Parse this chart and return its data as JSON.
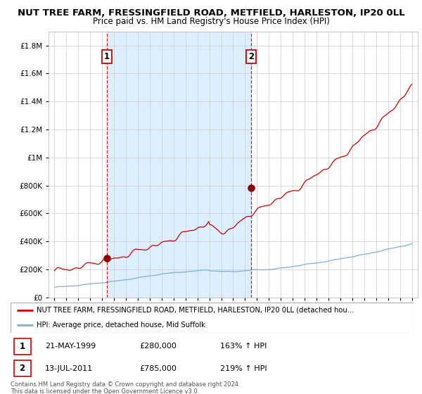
{
  "title": "NUT TREE FARM, FRESSINGFIELD ROAD, METFIELD, HARLESTON, IP20 0LL",
  "subtitle": "Price paid vs. HM Land Registry's House Price Index (HPI)",
  "ylim": [
    0,
    1900000
  ],
  "xlim": [
    1994.5,
    2025.5
  ],
  "yticks": [
    0,
    200000,
    400000,
    600000,
    800000,
    1000000,
    1200000,
    1400000,
    1600000,
    1800000
  ],
  "sale1_x": 1999.38,
  "sale1_y": 280000,
  "sale2_x": 2011.53,
  "sale2_y": 785000,
  "red_line_color": "#cc0000",
  "blue_line_color": "#7bafd4",
  "shade_color": "#ddeeff",
  "marker_color": "#cc0000",
  "vline_color": "#cc0000",
  "background_color": "#ffffff",
  "legend_line1": "NUT TREE FARM, FRESSINGFIELD ROAD, METFIELD, HARLESTON, IP20 0LL (detached hou...",
  "legend_line2": "HPI: Average price, detached house, Mid Suffolk",
  "table_row1": [
    "1",
    "21-MAY-1999",
    "£280,000",
    "163% ↑ HPI"
  ],
  "table_row2": [
    "2",
    "13-JUL-2011",
    "£785,000",
    "219% ↑ HPI"
  ],
  "footer": "Contains HM Land Registry data © Crown copyright and database right 2024.\nThis data is licensed under the Open Government Licence v3.0.",
  "title_fontsize": 9.5,
  "subtitle_fontsize": 8.5
}
